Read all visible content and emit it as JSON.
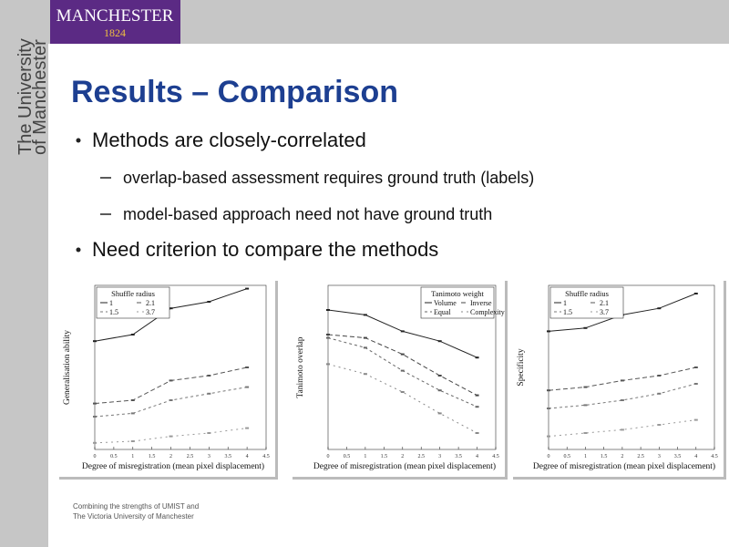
{
  "header": {
    "logo_name": "MANCHESTER",
    "logo_year": "1824",
    "sidebar_line1": "The University",
    "sidebar_line2": "of Manchester"
  },
  "title": "Results – Comparison",
  "bullets": [
    {
      "text": "Methods are closely-correlated",
      "sub": [
        "overlap-based assessment requires ground truth (labels)",
        "model-based approach need not have ground truth"
      ]
    },
    {
      "text": "Need criterion to compare the methods",
      "sub": []
    }
  ],
  "figures": [
    {
      "type": "line",
      "x_label": "Degree of misregistration (mean pixel displacement)",
      "y_label": "Generalisation ability",
      "legend_title": "Shuffle radius",
      "x": [
        0,
        1,
        2,
        3,
        4
      ],
      "xlim": [
        0,
        4.5
      ],
      "ylim": [
        0,
        1
      ],
      "xticks": [
        0,
        0.5,
        1,
        1.5,
        2,
        2.5,
        3,
        3.5,
        4,
        4.5
      ],
      "series": [
        {
          "name": "1",
          "color": "#222222",
          "values": [
            0.66,
            0.7,
            0.86,
            0.9,
            0.98
          ]
        },
        {
          "name": "2.1",
          "color": "#555555",
          "values": [
            0.28,
            0.3,
            0.42,
            0.45,
            0.5
          ]
        },
        {
          "name": "1.5",
          "color": "#777777",
          "values": [
            0.2,
            0.22,
            0.3,
            0.34,
            0.38
          ]
        },
        {
          "name": "3.7",
          "color": "#999999",
          "values": [
            0.04,
            0.05,
            0.08,
            0.1,
            0.13
          ]
        }
      ]
    },
    {
      "type": "line",
      "x_label": "Degree of misregistration (mean pixel displacement)",
      "y_label": "Tanimoto overlap",
      "legend_title": "Tanimoto weight",
      "x": [
        0,
        1,
        2,
        3,
        4
      ],
      "xlim": [
        0,
        4.5
      ],
      "ylim": [
        0,
        1
      ],
      "xticks": [
        0,
        0.5,
        1,
        1.5,
        2,
        2.5,
        3,
        3.5,
        4,
        4.5
      ],
      "series": [
        {
          "name": "Volume",
          "color": "#222222",
          "values": [
            0.85,
            0.82,
            0.72,
            0.66,
            0.56
          ]
        },
        {
          "name": "Inverse",
          "color": "#444444",
          "values": [
            0.7,
            0.68,
            0.58,
            0.45,
            0.33
          ]
        },
        {
          "name": "Equal",
          "color": "#666666",
          "values": [
            0.68,
            0.62,
            0.48,
            0.36,
            0.26
          ]
        },
        {
          "name": "Complexity",
          "color": "#888888",
          "values": [
            0.52,
            0.46,
            0.35,
            0.22,
            0.1
          ]
        }
      ]
    },
    {
      "type": "line",
      "x_label": "Degree of misregistration (mean pixel displacement)",
      "y_label": "Specificity",
      "legend_title": "Shuffle radius",
      "x": [
        0,
        1,
        2,
        3,
        4
      ],
      "xlim": [
        0,
        4.5
      ],
      "ylim": [
        0,
        1
      ],
      "xticks": [
        0,
        0.5,
        1,
        1.5,
        2,
        2.5,
        3,
        3.5,
        4,
        4.5
      ],
      "series": [
        {
          "name": "1",
          "color": "#222222",
          "values": [
            0.72,
            0.74,
            0.82,
            0.86,
            0.95
          ]
        },
        {
          "name": "2.1",
          "color": "#555555",
          "values": [
            0.36,
            0.38,
            0.42,
            0.45,
            0.5
          ]
        },
        {
          "name": "1.5",
          "color": "#777777",
          "values": [
            0.25,
            0.27,
            0.3,
            0.34,
            0.4
          ]
        },
        {
          "name": "3.7",
          "color": "#999999",
          "values": [
            0.08,
            0.1,
            0.12,
            0.15,
            0.18
          ]
        }
      ]
    }
  ],
  "footer": [
    "Combining the strengths of UMIST and",
    "The Victoria University of Manchester"
  ]
}
